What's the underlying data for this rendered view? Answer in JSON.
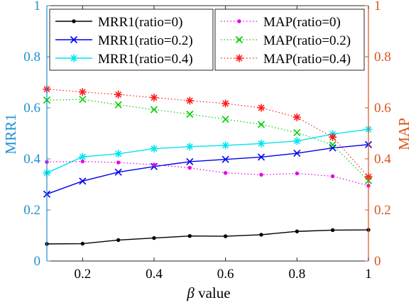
{
  "chart_data": {
    "type": "line",
    "xlabel_symbol": "β",
    "xlabel_text": " value",
    "ylabel_left": "MRR1",
    "ylabel_right": "MAP",
    "xlim": [
      0.1,
      1
    ],
    "ylim_left": [
      0,
      1
    ],
    "ylim_right": [
      0,
      1
    ],
    "x_ticks": [
      0.2,
      0.4,
      0.6,
      0.8,
      1
    ],
    "x_tick_labels": [
      "0.2",
      "0.4",
      "0.6",
      "0.8",
      "1"
    ],
    "y_ticks": [
      0,
      0.2,
      0.4,
      0.6,
      0.8,
      1
    ],
    "y_tick_labels_left": [
      "0",
      "0.2",
      "0.4",
      "0.6",
      "0.8",
      "1"
    ],
    "y_tick_labels_right": [
      "0",
      "0.2",
      "0.4",
      "0.6",
      "0.8",
      "1"
    ],
    "left_axis_color": "#1f8fd0",
    "right_axis_color": "#d95319",
    "x": [
      0.1,
      0.2,
      0.3,
      0.4,
      0.5,
      0.6,
      0.7,
      0.8,
      0.9,
      1.0
    ],
    "series": [
      {
        "name": "MRR1(ratio=0)",
        "axis": "left",
        "color": "#000000",
        "marker": "dot",
        "dash": false,
        "values": [
          0.067,
          0.068,
          0.082,
          0.09,
          0.098,
          0.097,
          0.103,
          0.116,
          0.121,
          0.122
        ]
      },
      {
        "name": "MRR1(ratio=0.2)",
        "axis": "left",
        "color": "#0000ee",
        "marker": "x",
        "dash": false,
        "values": [
          0.262,
          0.313,
          0.348,
          0.37,
          0.389,
          0.398,
          0.407,
          0.422,
          0.443,
          0.456
        ]
      },
      {
        "name": "MRR1(ratio=0.4)",
        "axis": "left",
        "color": "#00e5ee",
        "marker": "star",
        "dash": false,
        "values": [
          0.345,
          0.408,
          0.42,
          0.44,
          0.448,
          0.453,
          0.46,
          0.47,
          0.497,
          0.516
        ]
      },
      {
        "name": "MAP(ratio=0)",
        "axis": "right",
        "color": "#e600e6",
        "marker": "dot",
        "dash": true,
        "values": [
          0.388,
          0.39,
          0.386,
          0.377,
          0.365,
          0.345,
          0.338,
          0.343,
          0.332,
          0.295
        ]
      },
      {
        "name": "MAP(ratio=0.2)",
        "axis": "right",
        "color": "#00cc00",
        "marker": "x",
        "dash": true,
        "values": [
          0.63,
          0.633,
          0.612,
          0.593,
          0.575,
          0.555,
          0.535,
          0.503,
          0.455,
          0.315
        ]
      },
      {
        "name": "MAP(ratio=0.4)",
        "axis": "right",
        "color": "#ff1a1a",
        "marker": "star",
        "dash": true,
        "values": [
          0.673,
          0.662,
          0.652,
          0.64,
          0.628,
          0.617,
          0.6,
          0.563,
          0.485,
          0.33
        ]
      }
    ],
    "legend_placement": "top"
  }
}
